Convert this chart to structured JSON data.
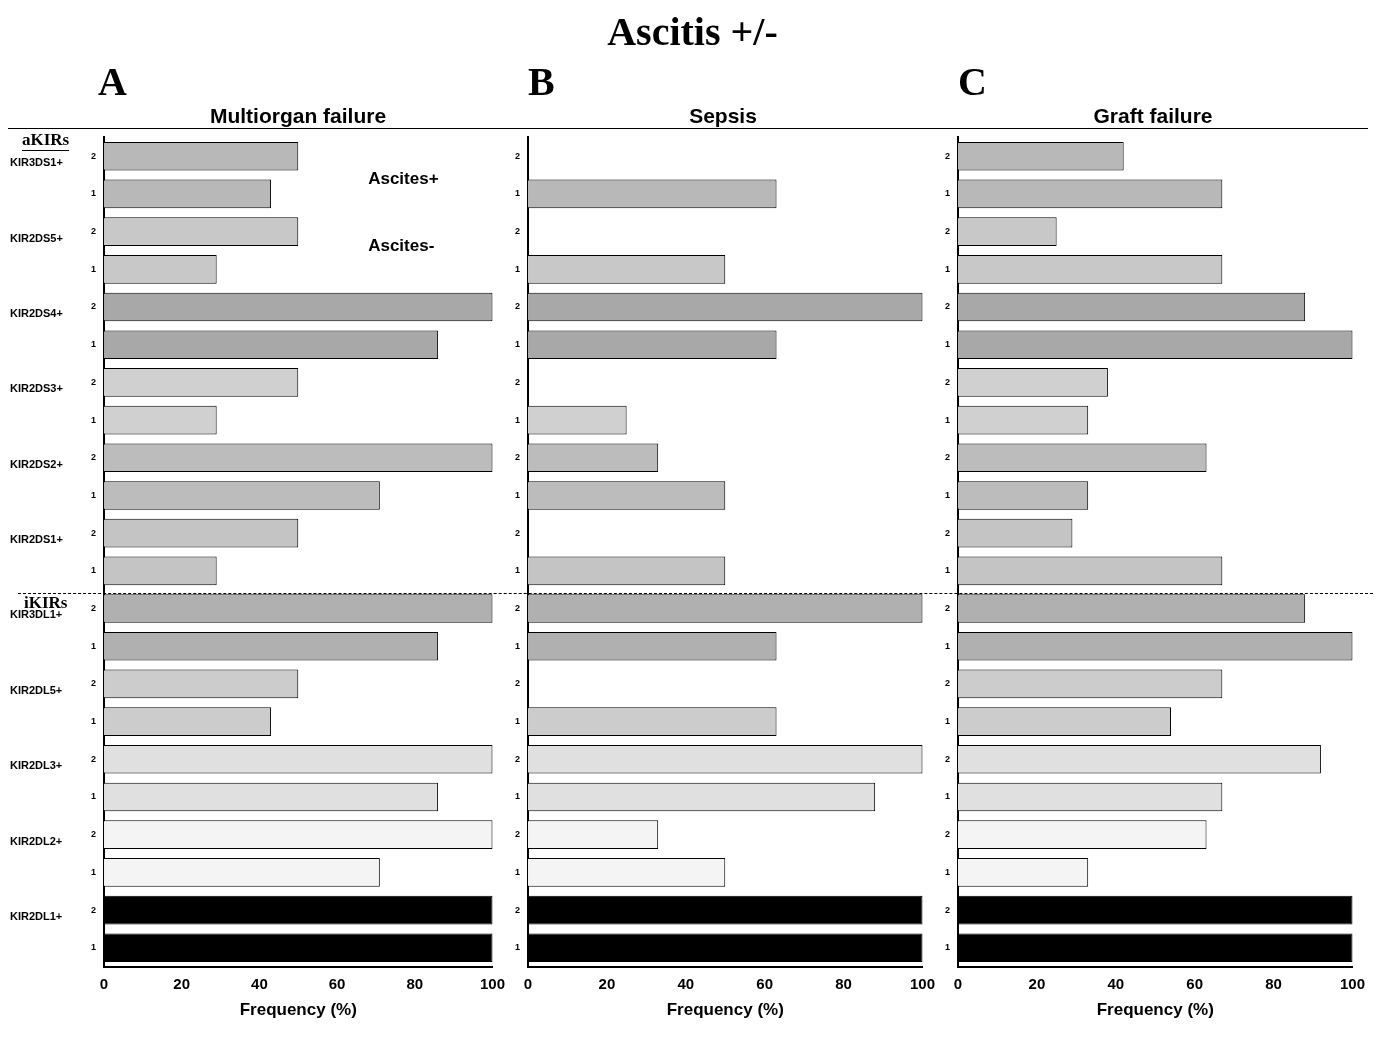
{
  "chart_data": [
    {
      "type": "bar",
      "orientation": "horizontal",
      "subtitle": "A",
      "title": "Multiorgan failure",
      "xlabel": "Frequency (%)",
      "xlim": [
        0,
        100
      ],
      "xticks": [
        0,
        20,
        40,
        60,
        80,
        100
      ],
      "grid": false,
      "legend": false,
      "categories": [
        "2",
        "1",
        "2",
        "1",
        "2",
        "1",
        "2",
        "1",
        "2",
        "1",
        "2",
        "1",
        "2",
        "1",
        "2",
        "1",
        "2",
        "1",
        "2",
        "1",
        "2",
        "1"
      ],
      "values": [
        50,
        43,
        50,
        29,
        100,
        86,
        50,
        29,
        100,
        71,
        50,
        29,
        100,
        86,
        50,
        43,
        100,
        86,
        100,
        71,
        100,
        100
      ],
      "colors": [
        "#b8b8b8",
        "#b8b8b8",
        "#c8c8c8",
        "#c8c8c8",
        "#a8a8a8",
        "#a8a8a8",
        "#d0d0d0",
        "#d0d0d0",
        "#bcbcbc",
        "#bcbcbc",
        "#c4c4c4",
        "#c4c4c4",
        "#b0b0b0",
        "#b0b0b0",
        "#cccccc",
        "#cccccc",
        "#e0e0e0",
        "#e0e0e0",
        "#f4f4f4",
        "#f4f4f4",
        "#000000",
        "#000000"
      ],
      "annotations": [
        "Ascitis +/-",
        "aKIRs",
        "iKIRs",
        "Ascites+",
        "Ascites-",
        "KIR3DS1+",
        "KIR2DS5+",
        "KIR2DS4+",
        "KIR2DS3+",
        "KIR2DS2+",
        "KIR2DS1+",
        "KIR3DL1+",
        "KIR2DL5+",
        "KIR2DL3+",
        "KIR2DL2+",
        "KIR2DL1+"
      ]
    },
    {
      "type": "bar",
      "orientation": "horizontal",
      "subtitle": "B",
      "title": "Sepsis",
      "xlabel": "Frequency (%)",
      "xlim": [
        0,
        100
      ],
      "xticks": [
        0,
        20,
        40,
        60,
        80,
        100
      ],
      "grid": false,
      "legend": false,
      "categories": [
        "2",
        "1",
        "2",
        "1",
        "2",
        "1",
        "2",
        "1",
        "2",
        "1",
        "2",
        "1",
        "2",
        "1",
        "2",
        "1",
        "2",
        "1",
        "2",
        "1",
        "2",
        "1"
      ],
      "values": [
        0,
        63,
        0,
        50,
        100,
        63,
        0,
        25,
        33,
        50,
        0,
        50,
        100,
        63,
        0,
        63,
        100,
        88,
        33,
        50,
        100,
        100
      ],
      "colors": [
        "#b8b8b8",
        "#b8b8b8",
        "#c8c8c8",
        "#c8c8c8",
        "#a8a8a8",
        "#a8a8a8",
        "#d0d0d0",
        "#d0d0d0",
        "#bcbcbc",
        "#bcbcbc",
        "#c4c4c4",
        "#c4c4c4",
        "#b0b0b0",
        "#b0b0b0",
        "#cccccc",
        "#cccccc",
        "#e0e0e0",
        "#e0e0e0",
        "#f4f4f4",
        "#f4f4f4",
        "#000000",
        "#000000"
      ]
    },
    {
      "type": "bar",
      "orientation": "horizontal",
      "subtitle": "C",
      "title": "Graft failure",
      "xlabel": "Frequency (%)",
      "xlim": [
        0,
        100
      ],
      "xticks": [
        0,
        20,
        40,
        60,
        80,
        100
      ],
      "grid": false,
      "legend": false,
      "categories": [
        "2",
        "1",
        "2",
        "1",
        "2",
        "1",
        "2",
        "1",
        "2",
        "1",
        "2",
        "1",
        "2",
        "1",
        "2",
        "1",
        "2",
        "1",
        "2",
        "1",
        "2",
        "1"
      ],
      "values": [
        42,
        67,
        25,
        67,
        88,
        100,
        38,
        33,
        63,
        33,
        29,
        67,
        88,
        100,
        67,
        54,
        92,
        67,
        63,
        33,
        100,
        100
      ],
      "colors": [
        "#b8b8b8",
        "#b8b8b8",
        "#c8c8c8",
        "#c8c8c8",
        "#a8a8a8",
        "#a8a8a8",
        "#d0d0d0",
        "#d0d0d0",
        "#bcbcbc",
        "#bcbcbc",
        "#c4c4c4",
        "#c4c4c4",
        "#b0b0b0",
        "#b0b0b0",
        "#cccccc",
        "#cccccc",
        "#e0e0e0",
        "#e0e0e0",
        "#f4f4f4",
        "#f4f4f4",
        "#000000",
        "#000000"
      ]
    }
  ]
}
